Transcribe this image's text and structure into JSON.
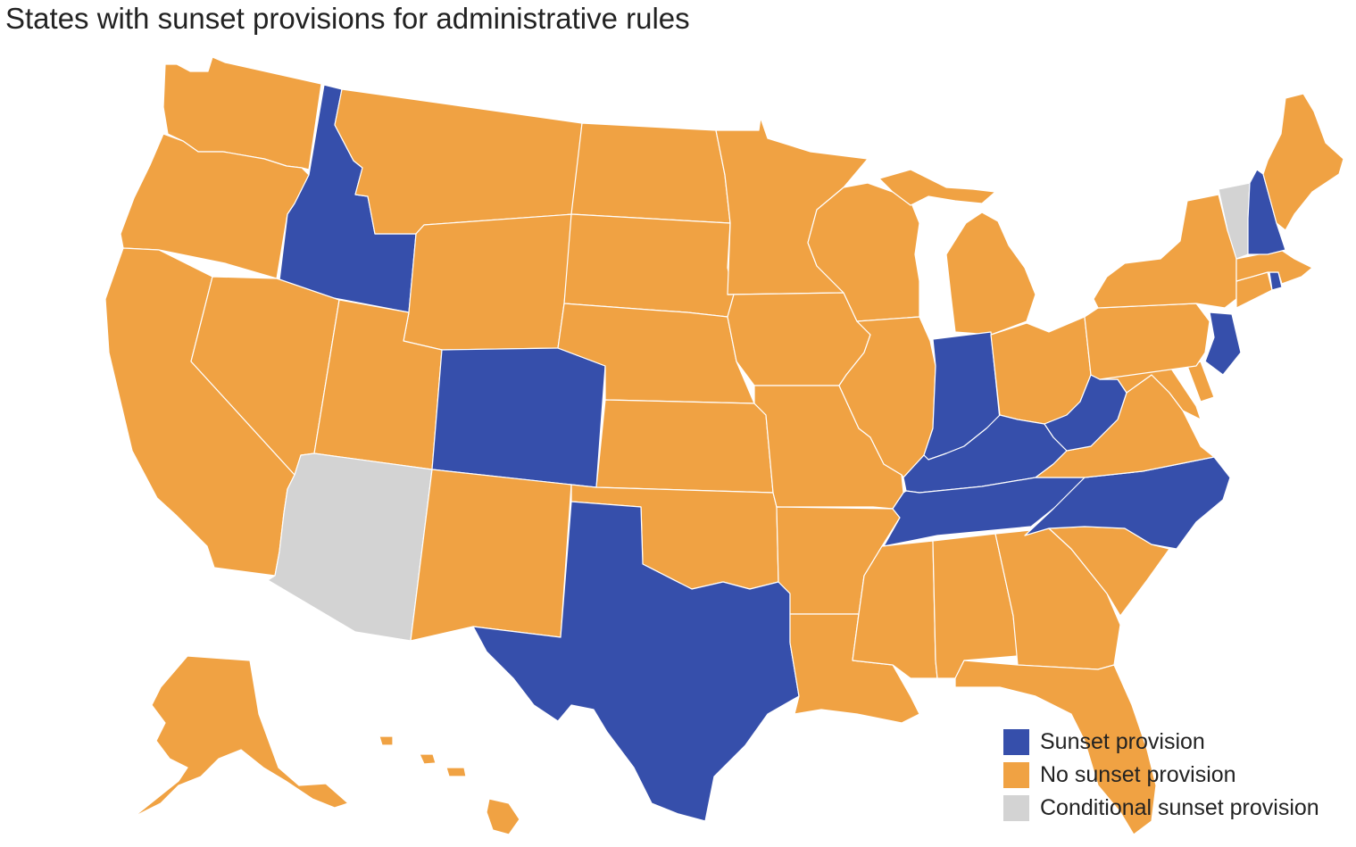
{
  "title": "States with sunset provisions for administrative rules",
  "colors": {
    "sunset": "#364fab",
    "no_sunset": "#f0a243",
    "conditional": "#d3d3d3",
    "highlight": "#fbd8b0"
  },
  "legend": [
    {
      "label": "Sunset provision",
      "category": "sunset"
    },
    {
      "label": "No sunset provision",
      "category": "no_sunset"
    },
    {
      "label": "Conditional sunset provision",
      "category": "conditional"
    }
  ],
  "states": [
    {
      "name": "Washington",
      "category": "no_sunset"
    },
    {
      "name": "Oregon",
      "category": "no_sunset"
    },
    {
      "name": "California",
      "category": "no_sunset"
    },
    {
      "name": "Idaho",
      "category": "sunset"
    },
    {
      "name": "Nevada",
      "category": "no_sunset"
    },
    {
      "name": "Montana",
      "category": "no_sunset"
    },
    {
      "name": "Wyoming",
      "category": "no_sunset"
    },
    {
      "name": "Utah",
      "category": "no_sunset"
    },
    {
      "name": "Arizona",
      "category": "conditional"
    },
    {
      "name": "Colorado",
      "category": "sunset"
    },
    {
      "name": "New Mexico",
      "category": "no_sunset"
    },
    {
      "name": "North Dakota",
      "category": "no_sunset"
    },
    {
      "name": "South Dakota",
      "category": "no_sunset"
    },
    {
      "name": "Nebraska",
      "category": "no_sunset"
    },
    {
      "name": "Kansas",
      "category": "no_sunset"
    },
    {
      "name": "Oklahoma",
      "category": "no_sunset"
    },
    {
      "name": "Texas",
      "category": "sunset"
    },
    {
      "name": "Minnesota",
      "category": "no_sunset"
    },
    {
      "name": "Iowa",
      "category": "no_sunset"
    },
    {
      "name": "Missouri",
      "category": "no_sunset"
    },
    {
      "name": "Arkansas",
      "category": "no_sunset"
    },
    {
      "name": "Louisiana",
      "category": "no_sunset"
    },
    {
      "name": "Wisconsin",
      "category": "no_sunset"
    },
    {
      "name": "Illinois",
      "category": "no_sunset"
    },
    {
      "name": "Michigan",
      "category": "no_sunset"
    },
    {
      "name": "Indiana",
      "category": "sunset"
    },
    {
      "name": "Ohio",
      "category": "no_sunset"
    },
    {
      "name": "Kentucky",
      "category": "sunset"
    },
    {
      "name": "Tennessee",
      "category": "sunset"
    },
    {
      "name": "Mississippi",
      "category": "no_sunset"
    },
    {
      "name": "Alabama",
      "category": "no_sunset"
    },
    {
      "name": "Georgia",
      "category": "no_sunset"
    },
    {
      "name": "Florida",
      "category": "no_sunset"
    },
    {
      "name": "South Carolina",
      "category": "no_sunset"
    },
    {
      "name": "North Carolina",
      "category": "sunset"
    },
    {
      "name": "Virginia",
      "category": "no_sunset"
    },
    {
      "name": "West Virginia",
      "category": "sunset"
    },
    {
      "name": "Maryland",
      "category": "no_sunset"
    },
    {
      "name": "Delaware",
      "category": "no_sunset"
    },
    {
      "name": "Pennsylvania",
      "category": "no_sunset"
    },
    {
      "name": "New Jersey",
      "category": "sunset"
    },
    {
      "name": "New York",
      "category": "no_sunset"
    },
    {
      "name": "Connecticut",
      "category": "no_sunset"
    },
    {
      "name": "Rhode Island",
      "category": "sunset"
    },
    {
      "name": "Massachusetts",
      "category": "no_sunset"
    },
    {
      "name": "Vermont",
      "category": "conditional"
    },
    {
      "name": "New Hampshire",
      "category": "sunset"
    },
    {
      "name": "Maine",
      "category": "no_sunset"
    },
    {
      "name": "Alaska",
      "category": "no_sunset"
    },
    {
      "name": "Hawaii",
      "category": "no_sunset"
    }
  ]
}
